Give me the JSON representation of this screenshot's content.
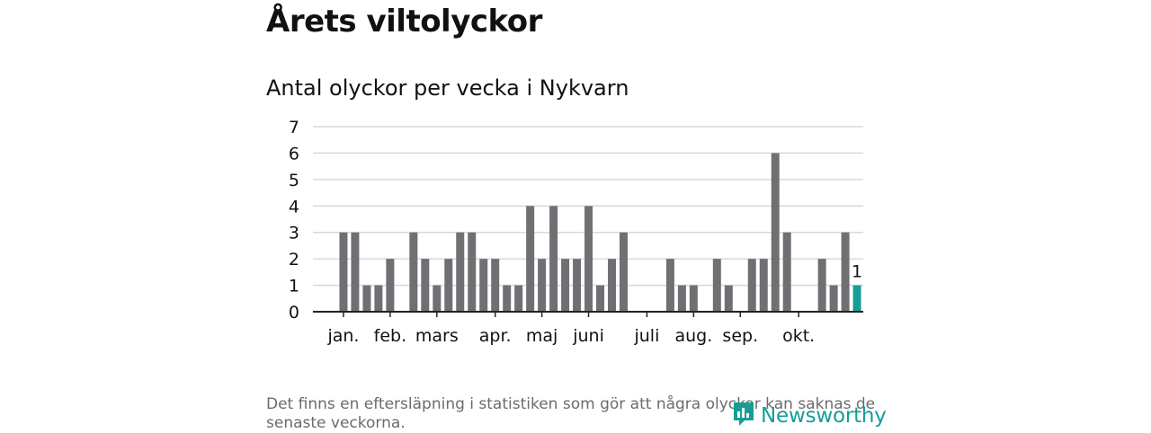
{
  "page": {
    "title": "Årets viltolyckor",
    "subtitle": "Antal olyckor per vecka i Nykvarn",
    "footnote": "Det finns en eftersläpning i statistiken som gör att några olyckor kan saknas de senaste veckorna.",
    "brand": "Newsworthy"
  },
  "colors": {
    "bar": "#707074",
    "highlight": "#169e96",
    "grid": "#d9d9d9",
    "axis": "#222222"
  },
  "chart_data": {
    "type": "bar",
    "title": "Antal olyckor per vecka i Nykvarn",
    "xlabel": "",
    "ylabel": "",
    "ylim": [
      0,
      7
    ],
    "yticks": [
      0,
      1,
      2,
      3,
      4,
      5,
      6,
      7
    ],
    "grid": true,
    "weeks": [
      1,
      2,
      3,
      4,
      5,
      6,
      7,
      8,
      9,
      10,
      11,
      12,
      13,
      14,
      15,
      16,
      17,
      18,
      19,
      20,
      21,
      22,
      23,
      24,
      25,
      26,
      27,
      28,
      29,
      30,
      31,
      32,
      33,
      34,
      35,
      36,
      37,
      38,
      39,
      40,
      41,
      42,
      43,
      44,
      45,
      46,
      47,
      48
    ],
    "values": [
      0,
      0,
      3,
      3,
      1,
      1,
      2,
      0,
      3,
      2,
      1,
      2,
      3,
      3,
      2,
      2,
      1,
      1,
      4,
      2,
      4,
      2,
      2,
      4,
      1,
      2,
      3,
      0,
      0,
      0,
      2,
      1,
      1,
      0,
      2,
      1,
      0,
      2,
      2,
      6,
      3,
      0,
      0,
      2,
      1,
      3,
      1,
      null
    ],
    "highlight_index": 46,
    "highlight_label": "1",
    "month_labels": [
      {
        "label": "jan.",
        "week": 3
      },
      {
        "label": "feb.",
        "week": 7
      },
      {
        "label": "mars",
        "week": 11
      },
      {
        "label": "apr.",
        "week": 16
      },
      {
        "label": "maj",
        "week": 20
      },
      {
        "label": "juni",
        "week": 24
      },
      {
        "label": "juli",
        "week": 29
      },
      {
        "label": "aug.",
        "week": 33
      },
      {
        "label": "sep.",
        "week": 37
      },
      {
        "label": "okt.",
        "week": 42
      }
    ]
  }
}
